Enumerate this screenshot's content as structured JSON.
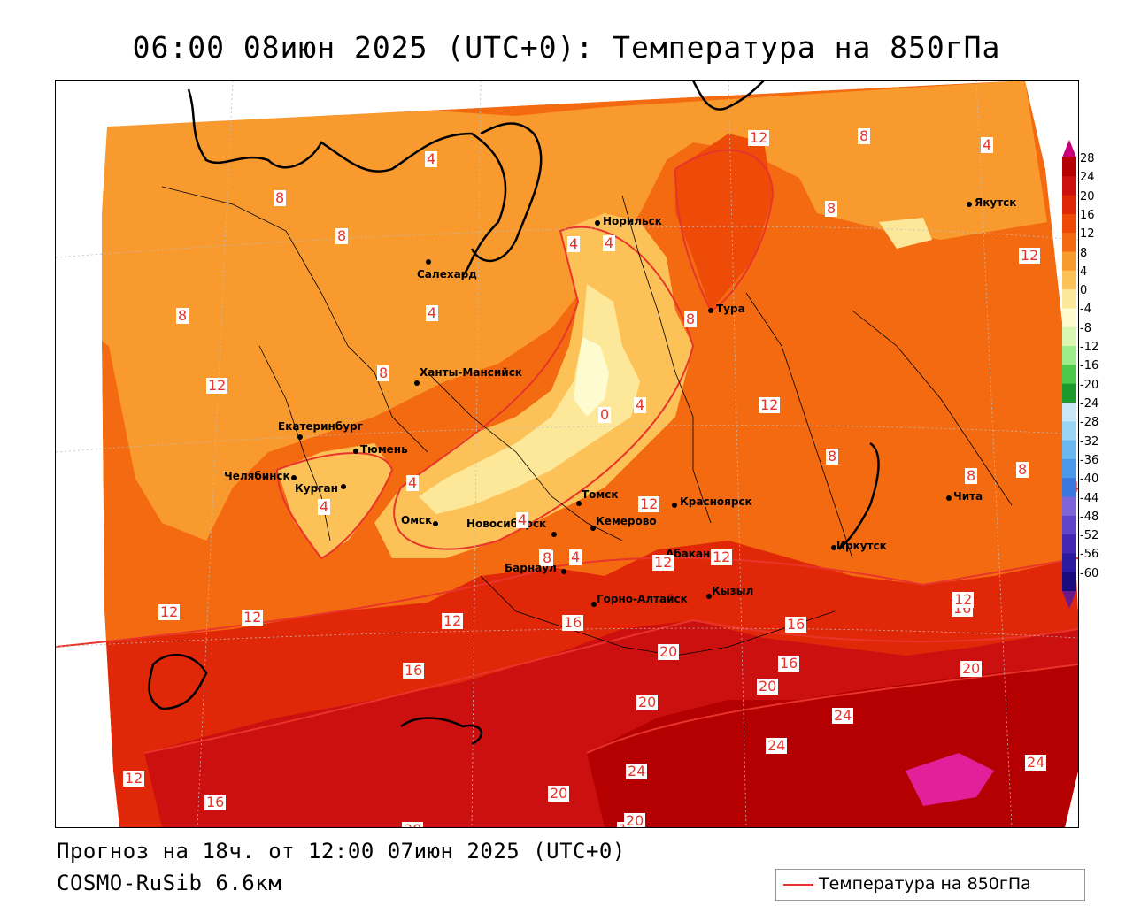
{
  "header": {
    "title": "06:00 08июн 2025 (UTC+0): Температура на 850гПа"
  },
  "footer": {
    "forecast": "Прогноз на 18ч. от 12:00 07июн 2025 (UTC+0)",
    "model": "COSMO-RuSib 6.6км"
  },
  "legend": {
    "label": "Температура на 850гПа",
    "line_color": "#e8342a"
  },
  "colorbar": {
    "ticks": [
      "28",
      "24",
      "20",
      "16",
      "12",
      "8",
      "4",
      "0",
      "-4",
      "-8",
      "-12",
      "-16",
      "-20",
      "-24",
      "-28",
      "-32",
      "-36",
      "-40",
      "-44",
      "-48",
      "-52",
      "-56",
      "-60"
    ],
    "colors": [
      "#c8007a",
      "#b40000",
      "#cc1010",
      "#e02808",
      "#ee4a08",
      "#f46a10",
      "#f89a2e",
      "#fcc258",
      "#fde89a",
      "#fffbd0",
      "#d9f7b0",
      "#9cec8a",
      "#4cc84a",
      "#1c9a2c",
      "#c8e8f8",
      "#9ad4f4",
      "#6ab8ee",
      "#4a98e8",
      "#3a78de",
      "#7e66d8",
      "#6244c8",
      "#4428b4",
      "#2c1aa0",
      "#1a0c80",
      "#6a1a8a"
    ]
  },
  "cities": [
    {
      "name": "Норильск"
    },
    {
      "name": "Якутск"
    },
    {
      "name": "Салехард"
    },
    {
      "name": "Тура"
    },
    {
      "name": "Ханты-Мансийск"
    },
    {
      "name": "Екатеринбург"
    },
    {
      "name": "Тюмень"
    },
    {
      "name": "Челябинск"
    },
    {
      "name": "Курган"
    },
    {
      "name": "Омск"
    },
    {
      "name": "Томск"
    },
    {
      "name": "Новосибирск"
    },
    {
      "name": "Кемерово"
    },
    {
      "name": "Красноярск"
    },
    {
      "name": "Барнаул"
    },
    {
      "name": "Абакан"
    },
    {
      "name": "Горно-Алтайск"
    },
    {
      "name": "Кызыл"
    },
    {
      "name": "Иркутск"
    },
    {
      "name": "Чита"
    }
  ],
  "contour_labels": [
    "4",
    "4",
    "8",
    "8",
    "12",
    "8",
    "8",
    "12",
    "8",
    "12",
    "8",
    "4",
    "4",
    "4",
    "8",
    "12",
    "8",
    "4",
    "0",
    "4",
    "12",
    "8",
    "12",
    "8",
    "4",
    "4",
    "4",
    "8",
    "12",
    "12",
    "16",
    "16",
    "12",
    "12",
    "16",
    "16",
    "20",
    "16",
    "12",
    "20",
    "20",
    "24",
    "24",
    "24",
    "20",
    "24",
    "20",
    "20",
    "16",
    "12",
    "16",
    "20",
    "8",
    "12",
    "4"
  ],
  "colors": {
    "accent": "#e8342a"
  }
}
